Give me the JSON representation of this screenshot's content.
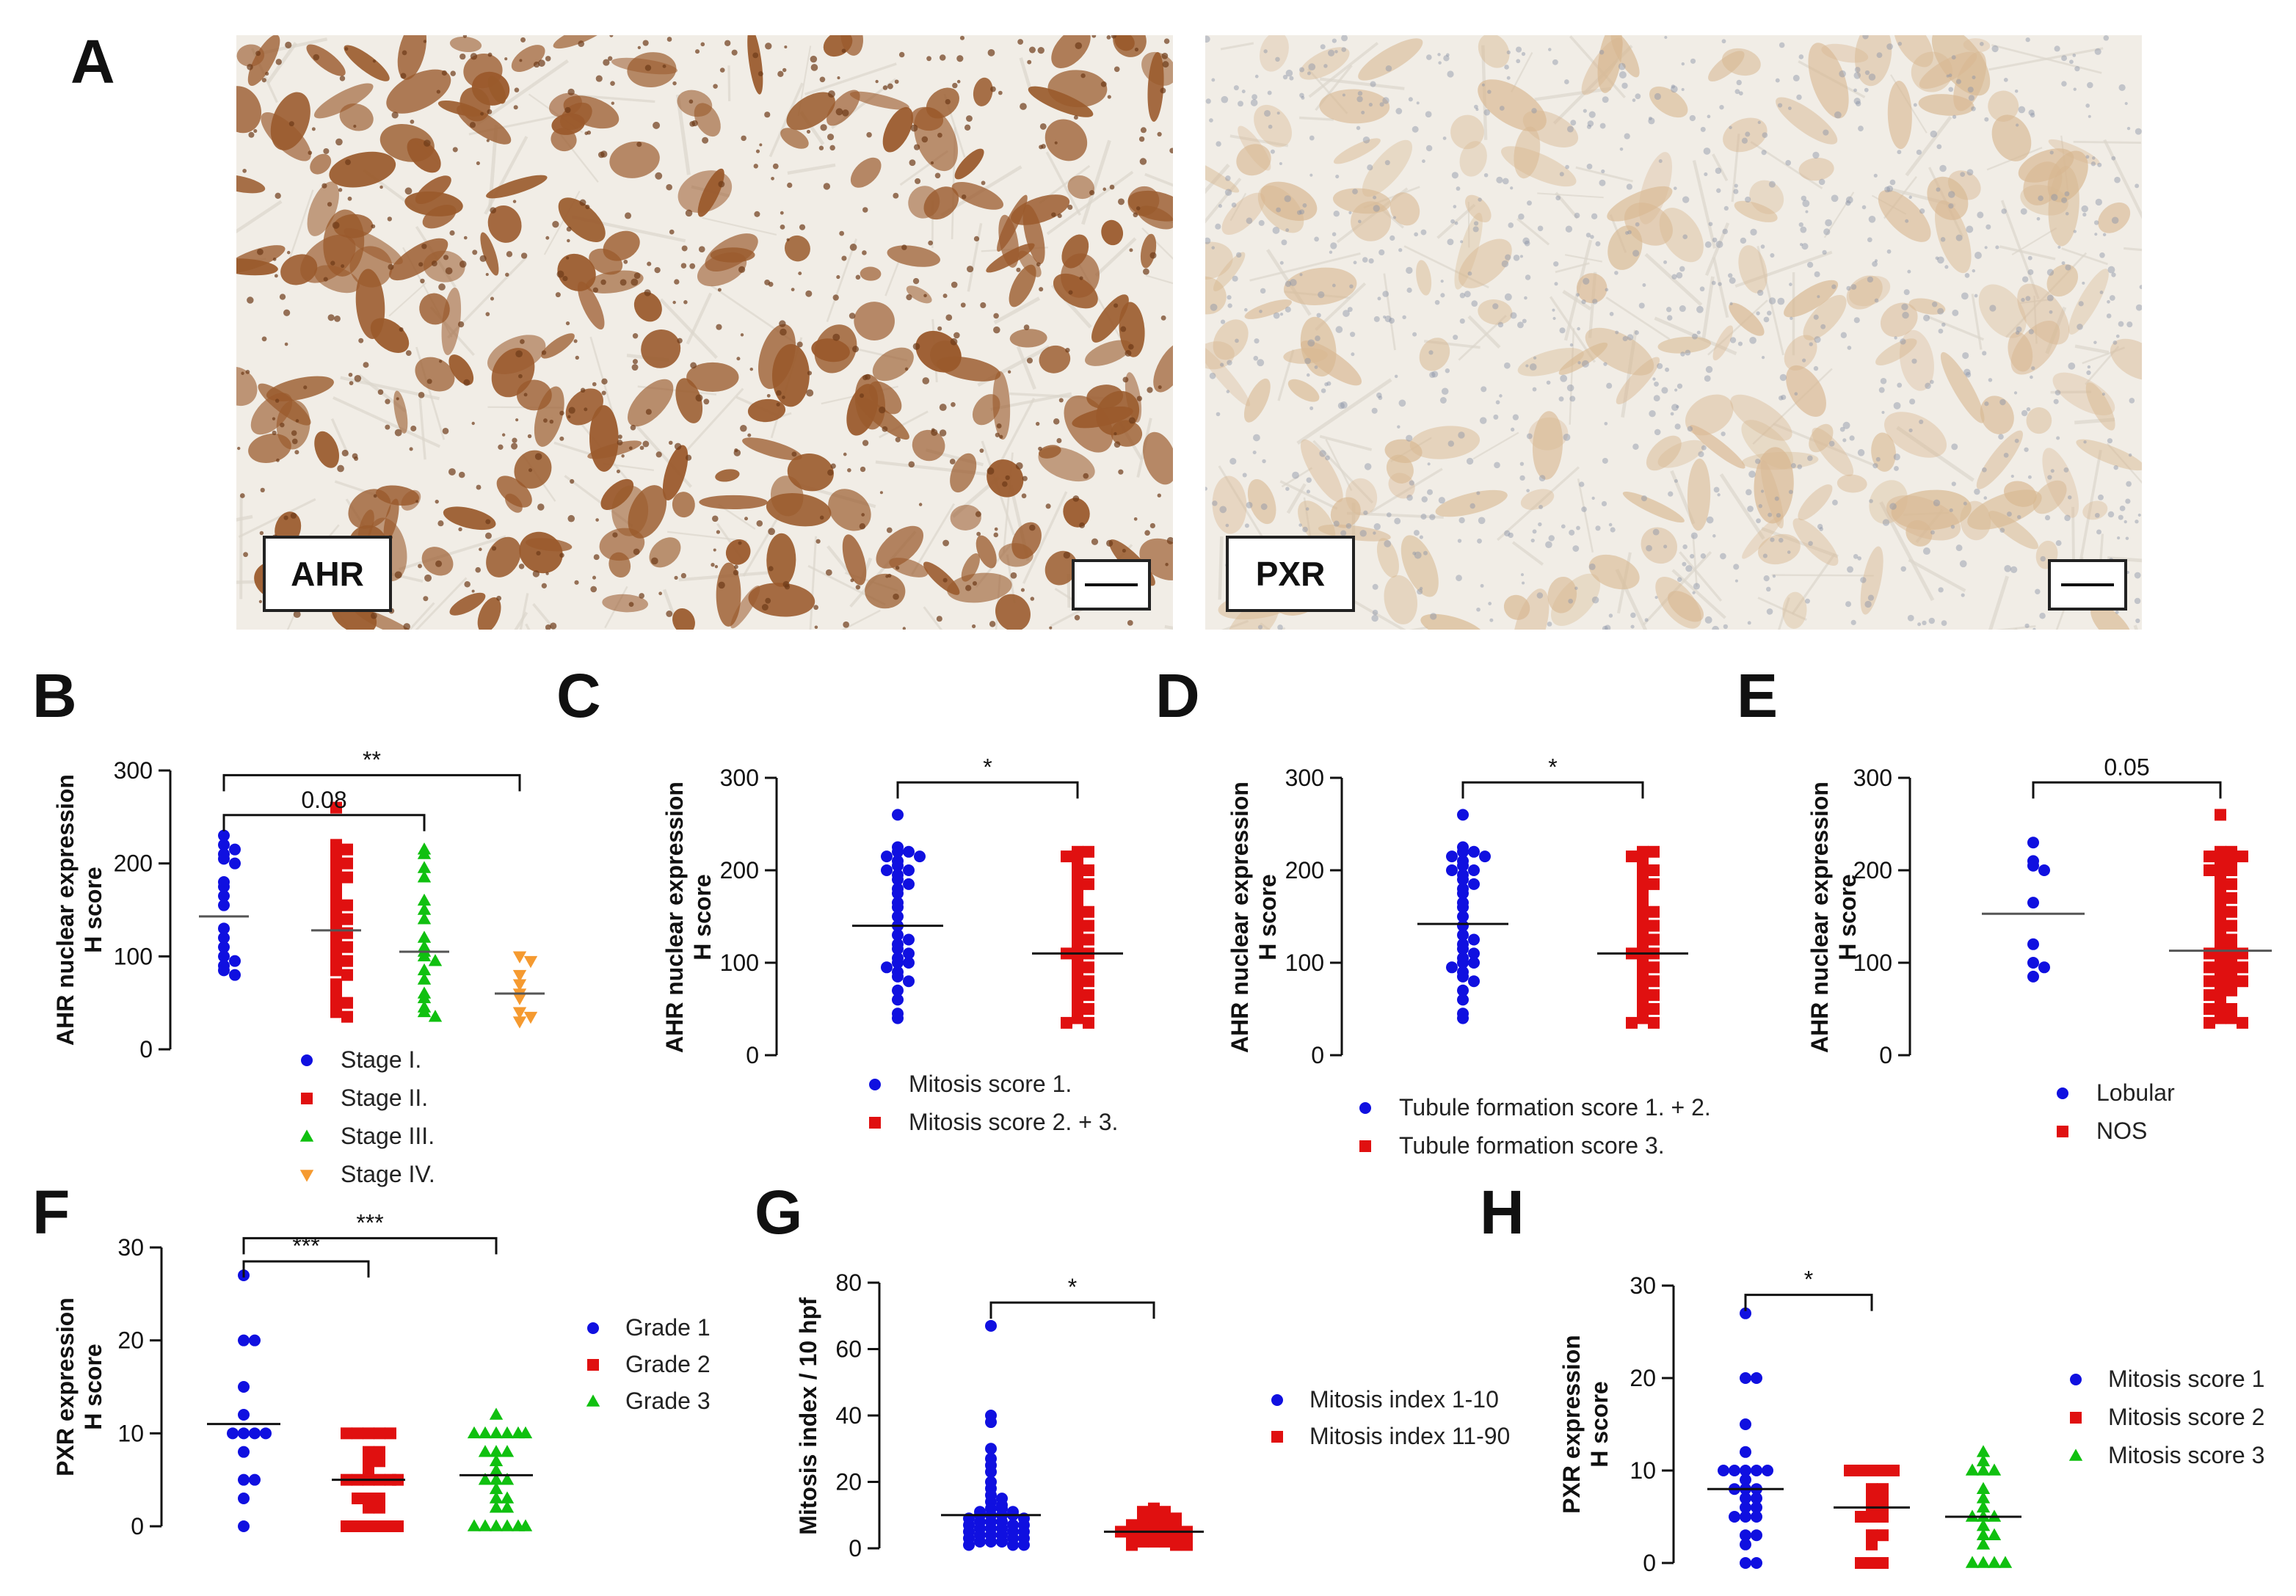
{
  "panel_letters": [
    "A",
    "B",
    "C",
    "D",
    "E",
    "F",
    "G",
    "H"
  ],
  "images": [
    {
      "label": "AHR",
      "stain": "nuclear-brown"
    },
    {
      "label": "PXR",
      "stain": "light-cytoplasmic"
    }
  ],
  "colors": {
    "blue": "#1010e0",
    "red": "#e01010",
    "green": "#10c010",
    "orange": "#f59a30",
    "tissue_bg": "#f1ede6",
    "brown": "#9a5a2c",
    "pale_brown": "#d8b892"
  },
  "chart_data": [
    {
      "id": "B",
      "type": "scatter",
      "ylabel": [
        "AHR nuclear expression",
        "H score"
      ],
      "ylim": [
        0,
        300
      ],
      "yticks": [
        0,
        100,
        200,
        300
      ],
      "legend_position": "below",
      "series": [
        {
          "name": "Stage I.",
          "marker": "circle",
          "color": "#1010e0",
          "mean": 143,
          "values": [
            230,
            220,
            215,
            210,
            205,
            200,
            180,
            175,
            165,
            155,
            130,
            120,
            110,
            100,
            95,
            90,
            85,
            80
          ]
        },
        {
          "name": "Stage II.",
          "marker": "square",
          "color": "#e01010",
          "mean": 128,
          "values": [
            260,
            220,
            215,
            210,
            205,
            200,
            195,
            190,
            185,
            180,
            170,
            165,
            160,
            155,
            150,
            145,
            140,
            135,
            130,
            125,
            120,
            115,
            110,
            105,
            100,
            95,
            90,
            85,
            80,
            70,
            60,
            55,
            50,
            45,
            40,
            35
          ]
        },
        {
          "name": "Stage III.",
          "marker": "triangle",
          "color": "#10c010",
          "mean": 105,
          "values": [
            215,
            210,
            195,
            185,
            160,
            150,
            140,
            120,
            110,
            105,
            100,
            95,
            85,
            75,
            60,
            55,
            45,
            40,
            35
          ]
        },
        {
          "name": "Stage IV.",
          "marker": "triangle-down",
          "color": "#f59a30",
          "mean": 60,
          "values": [
            100,
            95,
            80,
            70,
            60,
            55,
            40,
            35,
            30
          ]
        }
      ],
      "brackets": [
        {
          "from": 0,
          "to": 2,
          "y": 252,
          "label": "0.08"
        },
        {
          "from": 0,
          "to": 3,
          "y": 295,
          "label": "**"
        }
      ]
    },
    {
      "id": "C",
      "type": "scatter",
      "ylabel": [
        "AHR nuclear expression",
        "H score"
      ],
      "ylim": [
        0,
        300
      ],
      "yticks": [
        0,
        100,
        200,
        300
      ],
      "legend_position": "below",
      "series": [
        {
          "name": "Mitosis score 1.",
          "marker": "circle",
          "color": "#1010e0",
          "mean": 140,
          "values": [
            260,
            225,
            220,
            220,
            215,
            215,
            210,
            205,
            200,
            200,
            195,
            190,
            185,
            180,
            175,
            165,
            160,
            150,
            140,
            130,
            125,
            120,
            115,
            110,
            105,
            100,
            100,
            95,
            90,
            85,
            80,
            70,
            60,
            45,
            40
          ]
        },
        {
          "name": "Mitosis score 2. + 3.",
          "marker": "square",
          "color": "#e01010",
          "mean": 110,
          "values": [
            220,
            220,
            215,
            210,
            205,
            200,
            195,
            190,
            185,
            180,
            170,
            165,
            160,
            155,
            150,
            145,
            140,
            135,
            130,
            125,
            120,
            115,
            110,
            110,
            105,
            100,
            95,
            90,
            85,
            80,
            75,
            70,
            65,
            60,
            55,
            50,
            45,
            40,
            35,
            35
          ]
        }
      ],
      "brackets": [
        {
          "from": 0,
          "to": 1,
          "y": 295,
          "label": "*"
        }
      ]
    },
    {
      "id": "D",
      "type": "scatter",
      "ylabel": [
        "AHR nuclear expression",
        "H score"
      ],
      "ylim": [
        0,
        300
      ],
      "yticks": [
        0,
        100,
        200,
        300
      ],
      "legend_position": "below",
      "series": [
        {
          "name": "Tubule formation score 1. + 2.",
          "marker": "circle",
          "color": "#1010e0",
          "mean": 142,
          "values": [
            260,
            225,
            220,
            220,
            215,
            215,
            210,
            205,
            200,
            200,
            195,
            190,
            185,
            180,
            175,
            165,
            160,
            150,
            140,
            130,
            125,
            120,
            115,
            110,
            105,
            100,
            100,
            95,
            90,
            85,
            80,
            70,
            60,
            45,
            40
          ]
        },
        {
          "name": "Tubule formation score 3.",
          "marker": "square",
          "color": "#e01010",
          "mean": 110,
          "values": [
            220,
            220,
            215,
            210,
            205,
            200,
            195,
            190,
            185,
            180,
            170,
            165,
            160,
            155,
            150,
            145,
            140,
            135,
            130,
            125,
            120,
            115,
            110,
            110,
            105,
            100,
            95,
            90,
            85,
            80,
            75,
            70,
            65,
            60,
            55,
            50,
            45,
            40,
            35,
            35
          ]
        }
      ],
      "brackets": [
        {
          "from": 0,
          "to": 1,
          "y": 295,
          "label": "*"
        }
      ]
    },
    {
      "id": "E",
      "type": "scatter",
      "ylabel": [
        "AHR nuclear expression",
        "H score"
      ],
      "ylim": [
        0,
        300
      ],
      "yticks": [
        0,
        100,
        200,
        300
      ],
      "legend_position": "below",
      "series": [
        {
          "name": "Lobular",
          "marker": "circle",
          "color": "#1010e0",
          "mean": 153,
          "values": [
            230,
            210,
            205,
            200,
            165,
            120,
            100,
            95,
            85
          ]
        },
        {
          "name": "NOS",
          "marker": "square",
          "color": "#e01010",
          "mean": 113,
          "values": [
            260,
            220,
            220,
            215,
            215,
            210,
            210,
            205,
            200,
            200,
            195,
            190,
            185,
            180,
            175,
            170,
            165,
            160,
            155,
            150,
            145,
            140,
            135,
            130,
            125,
            120,
            120,
            115,
            115,
            110,
            110,
            105,
            105,
            100,
            100,
            95,
            95,
            90,
            90,
            85,
            85,
            80,
            80,
            75,
            75,
            70,
            70,
            65,
            60,
            55,
            50,
            50,
            45,
            45,
            40,
            40,
            35,
            35
          ]
        }
      ],
      "brackets": [
        {
          "from": 0,
          "to": 1,
          "y": 295,
          "label": "0.05"
        }
      ]
    },
    {
      "id": "F",
      "type": "scatter",
      "ylabel": [
        "PXR expression",
        "H score"
      ],
      "ylim": [
        0,
        30
      ],
      "yticks": [
        0,
        10,
        20,
        30
      ],
      "legend_position": "right",
      "series": [
        {
          "name": "Grade 1",
          "marker": "circle",
          "color": "#1010e0",
          "mean": 11,
          "values": [
            27,
            20,
            20,
            15,
            12,
            10,
            10,
            10,
            10,
            8,
            5,
            5,
            3,
            0
          ]
        },
        {
          "name": "Grade 2",
          "marker": "square",
          "color": "#e01010",
          "mean": 5,
          "values": [
            10,
            10,
            10,
            10,
            10,
            8,
            8,
            7,
            7,
            6,
            5,
            5,
            5,
            5,
            5,
            5,
            3,
            3,
            3,
            2,
            2,
            0,
            0,
            0,
            0,
            0,
            0
          ]
        },
        {
          "name": "Grade 3",
          "marker": "triangle",
          "color": "#10c010",
          "mean": 5.5,
          "values": [
            12,
            10,
            10,
            10,
            10,
            10,
            10,
            8,
            8,
            8,
            7,
            6,
            5,
            5,
            5,
            4,
            3,
            3,
            2,
            2,
            0,
            0,
            0,
            0,
            0,
            0
          ]
        }
      ],
      "brackets": [
        {
          "from": 0,
          "to": 1,
          "y": 28.5,
          "label": "***"
        },
        {
          "from": 0,
          "to": 2,
          "y": 31,
          "label": "***"
        }
      ]
    },
    {
      "id": "G",
      "type": "scatter",
      "ylabel": [
        "Mitosis index / 10 hpf"
      ],
      "ylim": [
        0,
        80
      ],
      "yticks": [
        0,
        20,
        40,
        60,
        80
      ],
      "legend_position": "right",
      "series": [
        {
          "name": "Mitosis index 1-10",
          "marker": "circle",
          "color": "#1010e0",
          "mean": 10,
          "values": [
            67,
            40,
            38,
            30,
            27,
            25,
            23,
            20,
            18,
            16,
            15,
            14,
            13,
            12,
            12,
            11,
            11,
            10,
            10,
            10,
            10,
            9,
            9,
            8,
            8,
            8,
            7,
            7,
            7,
            6,
            6,
            6,
            5,
            5,
            5,
            4,
            4,
            4,
            3,
            3,
            3,
            2,
            2,
            2,
            1,
            1,
            1
          ]
        },
        {
          "name": "Mitosis index 11-90",
          "marker": "square",
          "color": "#e01010",
          "mean": 5,
          "values": [
            12,
            11,
            11,
            10,
            10,
            9,
            9,
            8,
            8,
            8,
            7,
            7,
            6,
            6,
            6,
            5,
            5,
            5,
            5,
            4,
            4,
            4,
            3,
            3,
            3,
            2,
            2,
            2,
            1,
            1,
            1
          ]
        }
      ],
      "brackets": [
        {
          "from": 0,
          "to": 1,
          "y": 74,
          "label": "*"
        }
      ]
    },
    {
      "id": "H",
      "type": "scatter",
      "ylabel": [
        "PXR expression",
        "H score"
      ],
      "ylim": [
        0,
        30
      ],
      "yticks": [
        0,
        10,
        20,
        30
      ],
      "legend_position": "right",
      "series": [
        {
          "name": "Mitosis score 1",
          "marker": "circle",
          "color": "#1010e0",
          "mean": 8,
          "values": [
            27,
            20,
            20,
            15,
            12,
            10,
            10,
            10,
            10,
            10,
            9,
            8,
            8,
            8,
            7,
            7,
            6,
            6,
            5,
            5,
            5,
            3,
            3,
            2,
            0,
            0
          ]
        },
        {
          "name": "Mitosis score 2",
          "marker": "square",
          "color": "#e01010",
          "mean": 6,
          "values": [
            10,
            10,
            10,
            10,
            10,
            8,
            8,
            7,
            7,
            6,
            6,
            5,
            5,
            5,
            3,
            3,
            2,
            0,
            0,
            0
          ]
        },
        {
          "name": "Mitosis score 3",
          "marker": "triangle",
          "color": "#10c010",
          "mean": 5,
          "values": [
            12,
            11,
            10,
            10,
            10,
            8,
            7,
            6,
            5,
            5,
            5,
            4,
            3,
            3,
            2,
            0,
            0,
            0,
            0
          ]
        }
      ],
      "brackets": [
        {
          "from": 0,
          "to": 1,
          "y": 29,
          "label": "*"
        }
      ]
    }
  ]
}
